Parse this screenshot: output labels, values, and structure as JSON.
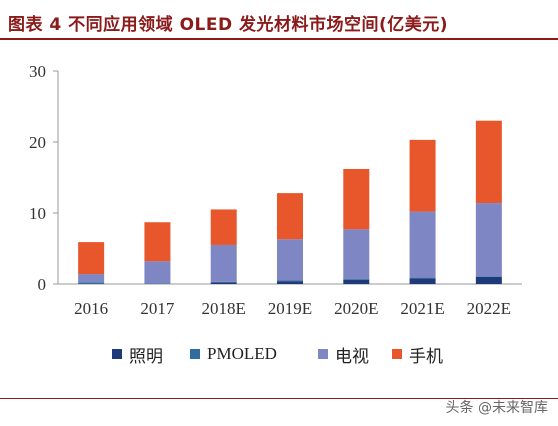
{
  "header": {
    "title": "图表 4 不同应用领域 OLED 发光材料市场空间(亿美元)"
  },
  "watermark": "头条 @未来智库",
  "chart_data": {
    "type": "bar",
    "stacked": true,
    "categories": [
      "2016",
      "2017",
      "2018E",
      "2019E",
      "2020E",
      "2021E",
      "2022E"
    ],
    "series": [
      {
        "name": "照明",
        "color": "#1f3a7a",
        "values": [
          0.0,
          0.0,
          0.2,
          0.4,
          0.6,
          0.8,
          1.0
        ]
      },
      {
        "name": "PMOLED",
        "color": "#2f6d9e",
        "values": [
          0.2,
          0.1,
          0.1,
          0.1,
          0.1,
          0.1,
          0.1
        ]
      },
      {
        "name": "电视",
        "color": "#7f86c4",
        "values": [
          1.2,
          3.1,
          5.2,
          5.8,
          7.0,
          9.3,
          10.3
        ]
      },
      {
        "name": "手机",
        "color": "#e8572c",
        "values": [
          4.5,
          5.5,
          5.0,
          6.5,
          8.5,
          10.1,
          11.6
        ]
      }
    ],
    "ylim": [
      0,
      30
    ],
    "yticks": [
      0,
      10,
      20,
      30
    ],
    "legend_position": "bottom",
    "grid": false
  }
}
